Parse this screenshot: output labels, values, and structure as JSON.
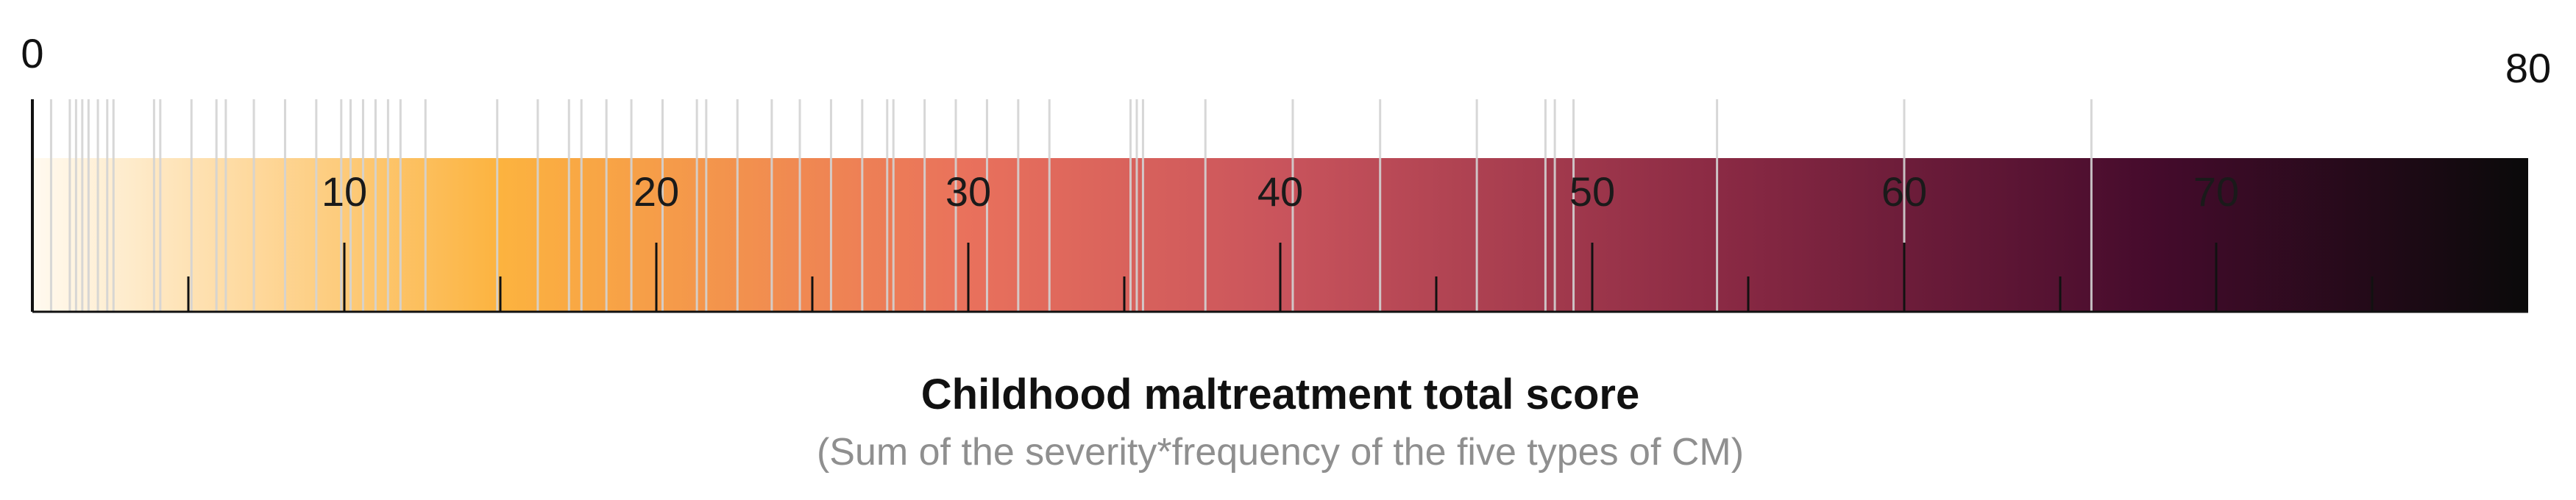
{
  "chart_data": {
    "type": "scatter",
    "title": "Childhood maltreatment total score",
    "subtitle": "(Sum of the severity*frequency of the five types of CM)",
    "xlim": [
      0,
      80
    ],
    "end_labels": [
      "0",
      "80"
    ],
    "major_ticks": [
      10,
      20,
      30,
      40,
      50,
      60,
      70
    ],
    "major_tick_labels": [
      "10",
      "20",
      "30",
      "40",
      "50",
      "60",
      "70"
    ],
    "minor_ticks": [
      5,
      15,
      25,
      35,
      45,
      55,
      65,
      75
    ],
    "gradient_stops": [
      {
        "value": 0,
        "color": "#fffaf0"
      },
      {
        "value": 15,
        "color": "#fcb33f"
      },
      {
        "value": 30,
        "color": "#e9715c"
      },
      {
        "value": 40,
        "color": "#c9545c"
      },
      {
        "value": 54,
        "color": "#8b2a44"
      },
      {
        "value": 68,
        "color": "#450b2c"
      },
      {
        "value": 80,
        "color": "#0a0a0a"
      }
    ],
    "observations": [
      0.6,
      1.2,
      1.4,
      1.6,
      1.8,
      2.1,
      2.4,
      2.6,
      3.9,
      4.1,
      5.1,
      5.9,
      6.2,
      7.1,
      8.1,
      9.1,
      9.9,
      10.2,
      10.6,
      11.0,
      11.4,
      11.8,
      12.6,
      14.9,
      16.2,
      17.2,
      17.6,
      18.4,
      19.2,
      20.2,
      21.3,
      21.6,
      22.6,
      23.7,
      24.6,
      25.6,
      26.6,
      27.4,
      27.6,
      28.6,
      29.6,
      30.6,
      31.6,
      32.6,
      35.2,
      35.4,
      35.6,
      37.6,
      40.4,
      43.2,
      46.3,
      48.5,
      48.8,
      49.4,
      54.0,
      60.0,
      66.0
    ]
  }
}
